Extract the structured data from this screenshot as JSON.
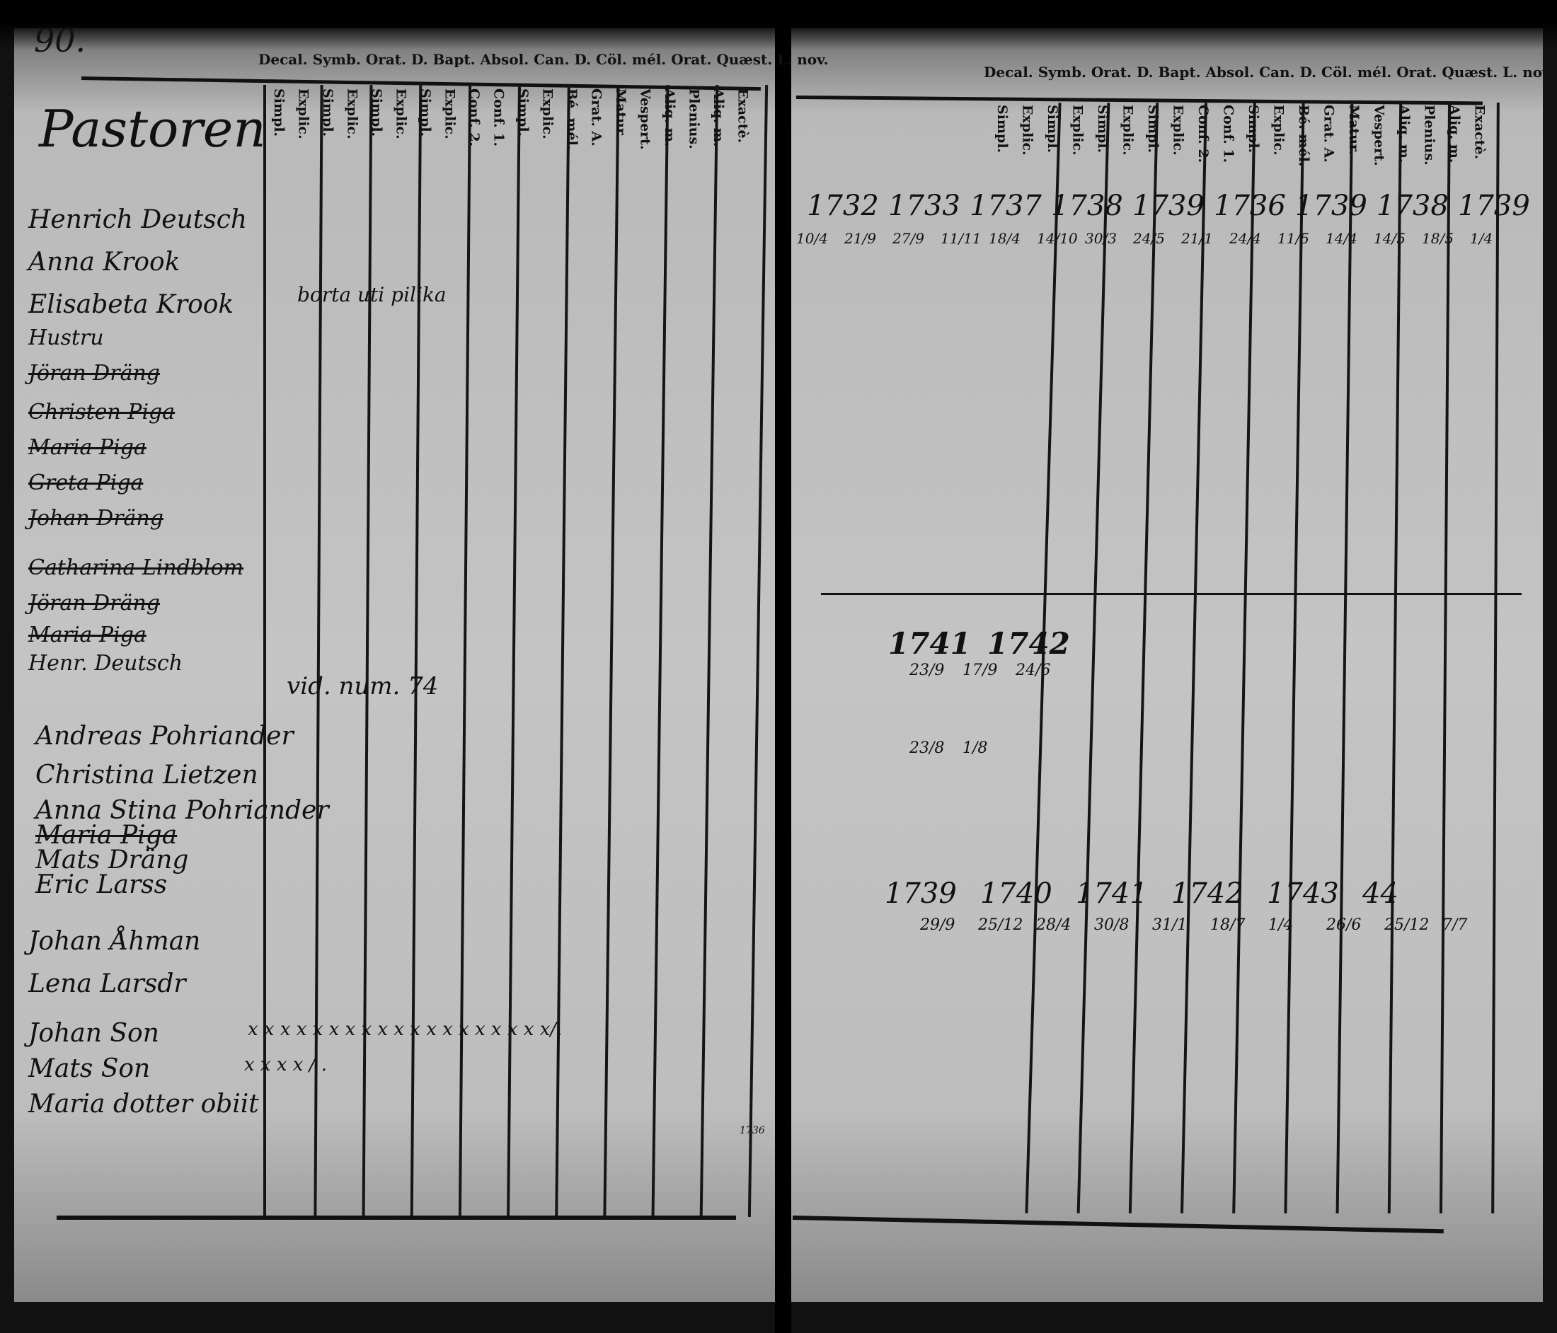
{
  "page_number": "90.",
  "header_left": "Decal. Symb. Orat. D. Bapt. Absol. Can. D. Cöl. mél. Orat. Quæst. L. nov.",
  "header_right": "Decal. Symb. Orat. D. Bapt. Absol. Can. D. Cöl. mél. Orat. Quæst. L. nov.",
  "section_title": "Pastoren",
  "column_headers": [
    "Simpl.",
    "Explic.",
    "Simpl.",
    "Explic.",
    "Simpl.",
    "Explic.",
    "Simpl.",
    "Explic.",
    "Conf. 2.",
    "Conf. 1.",
    "Simpl.",
    "Explic.",
    "Bé. mél.",
    "Grat. A.",
    "Matur.",
    "Vespert.",
    "Aliq. m.",
    "Plenius.",
    "Aliq. m.",
    "Exactè."
  ],
  "names": [
    {
      "text": "Henrich Deutsch",
      "struck": false
    },
    {
      "text": "Anna Krook",
      "struck": false
    },
    {
      "text": "Elisabeta Krook",
      "struck": false
    },
    {
      "text": "Hustru",
      "struck": false
    },
    {
      "text": "Jöran Dräng",
      "struck": true
    },
    {
      "text": "Christen Piga",
      "struck": true
    },
    {
      "text": "Maria Piga",
      "struck": true
    },
    {
      "text": "Greta Piga",
      "struck": true
    },
    {
      "text": "Johan Dräng",
      "struck": true
    },
    {
      "text": "Catharina Lindblom",
      "struck": true
    },
    {
      "text": "Jöran Dräng",
      "struck": true
    },
    {
      "text": "Maria Piga",
      "struck": true
    },
    {
      "text": "Henr. Deutsch",
      "struck": false
    },
    {
      "text": "Andreas Pohriander",
      "struck": false
    },
    {
      "text": "Christina Lietzen",
      "struck": false
    },
    {
      "text": "Anna Stina Pohriander",
      "struck": false
    },
    {
      "text": "Maria Piga",
      "struck": true
    },
    {
      "text": "Mats Dräng",
      "struck": false
    },
    {
      "text": "Eric Larss",
      "struck": false
    },
    {
      "text": "Johan Åhman",
      "struck": false
    },
    {
      "text": "Lena Larsdr",
      "struck": false
    },
    {
      "text": "Johan Son",
      "struck": false
    },
    {
      "text": "Mats Son",
      "struck": false
    },
    {
      "text": "Maria dotter obiit",
      "struck": false
    }
  ],
  "notes": {
    "vid_num": "vid. num. 74",
    "bortaa": "borta uti pilika",
    "x_marks_row1": "x x  x x  x x  x x  x x  x x  x x  x x  x x  x/.",
    "x_marks_row2": "x x  x x  /  .",
    "margin_year": "1736"
  },
  "right_years": {
    "row1": [
      "1732",
      "1733",
      "1737",
      "1738",
      "1739",
      "1736",
      "1739",
      "1738",
      "1739"
    ],
    "row2": [
      "1741",
      "1742"
    ],
    "row3": [
      "1739",
      "1740",
      "1741",
      "1742",
      "1743",
      "44"
    ]
  },
  "right_fractions_row1": [
    "10/4",
    "21/9",
    "27/9",
    "11/11",
    "18/4",
    "14/10",
    "30/3",
    "24/5",
    "21/1",
    "24/4",
    "11/5",
    "14/4",
    "14/5",
    "18/5",
    "1/4"
  ],
  "right_fractions_row2": [
    "23/9",
    "17/9",
    "24/6",
    "23/8",
    "1/8"
  ],
  "right_fractions_row3": [
    "29/9",
    "25/12",
    "28/4",
    "30/8",
    "31/1",
    "18/7",
    "1/4",
    "26/6",
    "25/12",
    "7/7"
  ]
}
